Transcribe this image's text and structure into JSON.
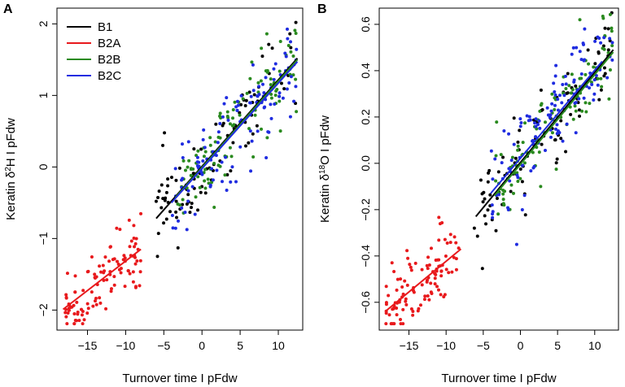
{
  "figure": {
    "panel_labels": [
      "A",
      "B"
    ]
  },
  "chart_data": [
    {
      "type": "scatter",
      "panel": "A",
      "xlabel": "Turnover time I pFdw",
      "ylabel_prefix": "Keratin δ",
      "ylabel_sup": "2",
      "ylabel_suffix": "H I pFdw",
      "xlim": [
        -19,
        13.2
      ],
      "ylim": [
        -2.28,
        2.22
      ],
      "xticks": [
        -15,
        -10,
        -5,
        0,
        5,
        10
      ],
      "yticks": [
        -2,
        -1,
        0,
        1,
        2
      ],
      "ytick_labels": [
        "−2",
        "−1",
        "0",
        "1",
        "2"
      ],
      "xtick_labels": [
        "−15",
        "−10",
        "−5",
        "0",
        "5",
        "10"
      ],
      "legend": {
        "position": "top-left",
        "entries": [
          "B1",
          "B2A",
          "B2B",
          "B2C"
        ]
      },
      "series": [
        {
          "name": "B1",
          "color": "#000000",
          "fit": {
            "x": [
              -6.0,
              12.5
            ],
            "y": [
              -0.72,
              1.52
            ]
          },
          "cloud": {
            "x_range": [
              -6.2,
              12.4
            ],
            "n": 95,
            "seed": 11,
            "spread": 0.3
          },
          "extra_points": [
            [
              12.3,
              2.02
            ],
            [
              -6.0,
              -0.48
            ]
          ]
        },
        {
          "name": "B2A",
          "color": "#e8191c",
          "fit": {
            "x": [
              -18.2,
              -8.0
            ],
            "y": [
              -1.99,
              -1.15
            ]
          },
          "cloud": {
            "x_range": [
              -18.2,
              -8.0
            ],
            "n": 110,
            "seed": 23,
            "spread": 0.22
          },
          "extra_points": []
        },
        {
          "name": "B2B",
          "color": "#2a8a1f",
          "fit": {
            "x": [
              -3.5,
              12.5
            ],
            "y": [
              -0.43,
              1.5
            ]
          },
          "cloud": {
            "x_range": [
              -3.5,
              12.4
            ],
            "n": 110,
            "seed": 37,
            "spread": 0.3
          },
          "extra_points": [
            [
              8.5,
              1.86
            ]
          ]
        },
        {
          "name": "B2C",
          "color": "#1f2ce0",
          "fit": {
            "x": [
              -4.0,
              12.5
            ],
            "y": [
              -0.5,
              1.47
            ]
          },
          "cloud": {
            "x_range": [
              -4.0,
              12.4
            ],
            "n": 120,
            "seed": 53,
            "spread": 0.3
          },
          "extra_points": [
            [
              11.6,
              1.75
            ]
          ]
        }
      ]
    },
    {
      "type": "scatter",
      "panel": "B",
      "xlabel": "Turnover time I pFdw",
      "ylabel_prefix": "Keratin δ",
      "ylabel_sup": "18",
      "ylabel_suffix": "O I pFdw",
      "xlim": [
        -19,
        13.2
      ],
      "ylim": [
        -0.72,
        0.67
      ],
      "xticks": [
        -15,
        -10,
        -5,
        0,
        5,
        10
      ],
      "yticks": [
        -0.6,
        -0.4,
        -0.2,
        0.0,
        0.2,
        0.4,
        0.6
      ],
      "ytick_labels": [
        "−0.6",
        "−0.4",
        "−0.2",
        "0.0",
        "0.2",
        "0.4",
        "0.6"
      ],
      "xtick_labels": [
        "−15",
        "−10",
        "−5",
        "0",
        "5",
        "10"
      ],
      "series": [
        {
          "name": "B1",
          "color": "#000000",
          "fit": {
            "x": [
              -6.0,
              12.5
            ],
            "y": [
              -0.23,
              0.49
            ]
          },
          "cloud": {
            "x_range": [
              -6.2,
              12.4
            ],
            "n": 95,
            "seed": 71,
            "spread": 0.1
          },
          "extra_points": [
            [
              12.3,
              0.65
            ],
            [
              -6.2,
              -0.28
            ]
          ]
        },
        {
          "name": "B2A",
          "color": "#e8191c",
          "fit": {
            "x": [
              -18.2,
              -8.0
            ],
            "y": [
              -0.64,
              -0.37
            ]
          },
          "cloud": {
            "x_range": [
              -18.2,
              -8.0
            ],
            "n": 110,
            "seed": 83,
            "spread": 0.075
          },
          "extra_points": []
        },
        {
          "name": "B2B",
          "color": "#2a8a1f",
          "fit": {
            "x": [
              -3.5,
              12.5
            ],
            "y": [
              -0.14,
              0.48
            ]
          },
          "cloud": {
            "x_range": [
              -3.5,
              12.4
            ],
            "n": 110,
            "seed": 97,
            "spread": 0.1
          },
          "extra_points": [
            [
              8.0,
              0.62
            ]
          ]
        },
        {
          "name": "B2C",
          "color": "#1f2ce0",
          "fit": {
            "x": [
              -4.0,
              11.0
            ],
            "y": [
              -0.13,
              0.44
            ]
          },
          "cloud": {
            "x_range": [
              -4.0,
              12.4
            ],
            "n": 120,
            "seed": 109,
            "spread": 0.1
          },
          "extra_points": [
            [
              -0.5,
              -0.35
            ],
            [
              10.8,
              0.52
            ]
          ]
        }
      ]
    }
  ]
}
